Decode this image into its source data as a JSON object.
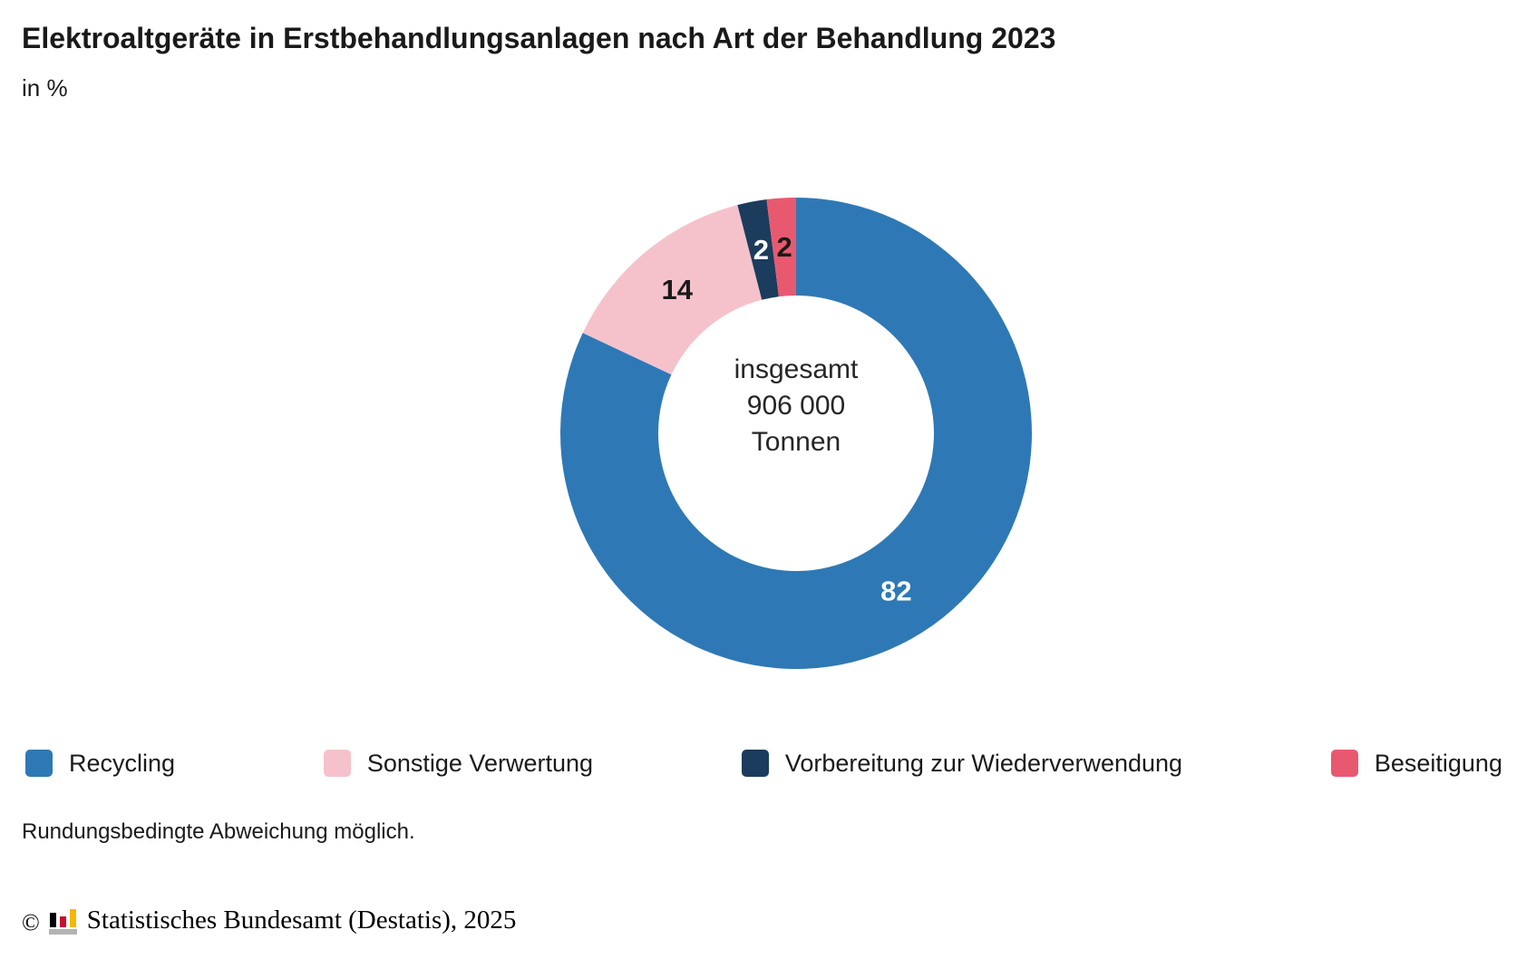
{
  "header": {
    "title": "Elektroaltgeräte in Erstbehandlungsanlagen nach Art der Behandlung 2023",
    "subtitle": "in %"
  },
  "chart_data": {
    "type": "pie",
    "variant": "donut",
    "title": "Elektroaltgeräte in Erstbehandlungsanlagen nach Art der Behandlung 2023",
    "unit": "in %",
    "direction": "clockwise",
    "start_angle_deg": 0,
    "center_label": {
      "line1": "insgesamt",
      "line2": "906 000",
      "line3": "Tonnen"
    },
    "total": "906 000 Tonnen",
    "segments": [
      {
        "id": "recycling",
        "label": "Recycling",
        "value": 82,
        "value_label": "82",
        "color": "#2e79b5",
        "value_label_color": "#ffffff"
      },
      {
        "id": "sonstige-verwertung",
        "label": "Sonstige Verwertung",
        "value": 14,
        "value_label": "14",
        "color": "#f5c2cc",
        "value_label_color": "#1a1a1a"
      },
      {
        "id": "vorbereitung-zur-wiederverwendung",
        "label": "Vorbereitung zur Wiederverwendung",
        "value": 2,
        "value_label": "2",
        "color": "#1b3c5c",
        "value_label_color": "#ffffff"
      },
      {
        "id": "beseitigung",
        "label": "Beseitigung",
        "value": 2,
        "value_label": "2",
        "color": "#e8596f",
        "value_label_color": "#1a1a1a"
      }
    ],
    "legend_position": "bottom"
  },
  "footnote": "Rundungsbedingte Abweichung möglich.",
  "footer": {
    "copyright_symbol": "©",
    "credit": "Statistisches Bundesamt (Destatis), 2025",
    "logo_colors": {
      "black": "#000000",
      "red": "#c8102e",
      "gold": "#f5b800",
      "gray": "#b3b3b3"
    }
  }
}
